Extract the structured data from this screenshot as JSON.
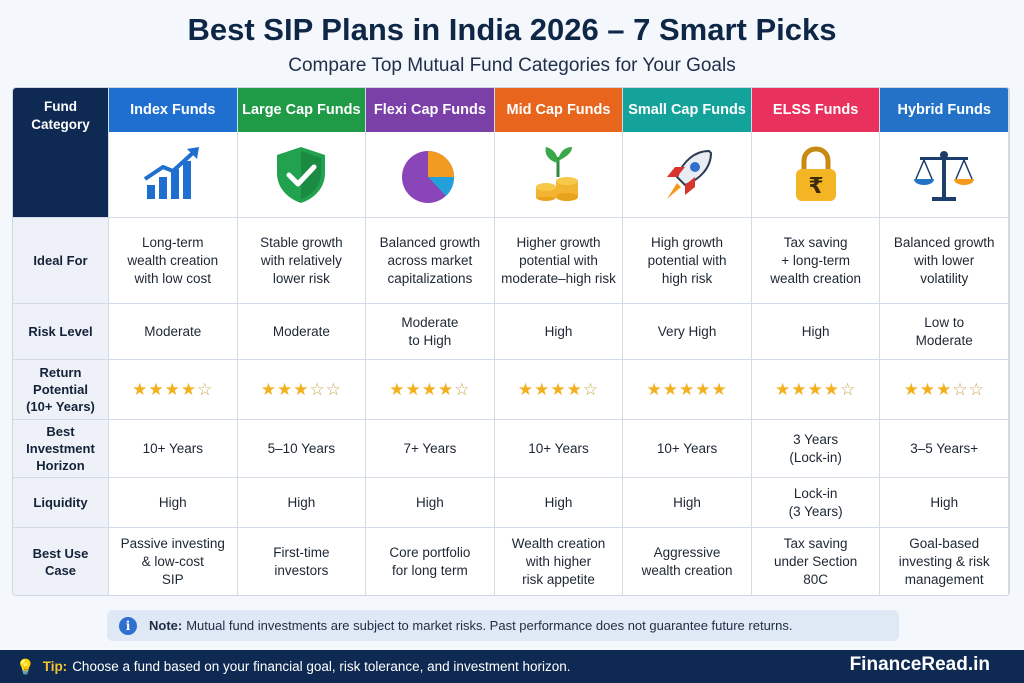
{
  "title": "Best SIP Plans in India 2026 – 7 Smart Picks",
  "subtitle": "Compare Top Mutual Fund Categories for Your Goals",
  "corner_label": "Fund\nCategory",
  "columns": [
    {
      "name": "Index Funds",
      "color": "#1e6fd0",
      "icon": "growth-chart-icon"
    },
    {
      "name": "Large Cap Funds",
      "color": "#1f9a47",
      "icon": "shield-check-icon"
    },
    {
      "name": "Flexi Cap Funds",
      "color": "#7b3fa8",
      "icon": "pie-chart-icon"
    },
    {
      "name": "Mid Cap Funds",
      "color": "#e8651d",
      "icon": "coins-plant-icon"
    },
    {
      "name": "Small Cap Funds",
      "color": "#14a39a",
      "icon": "rocket-icon"
    },
    {
      "name": "ELSS Funds",
      "color": "#e8325d",
      "icon": "rupee-lock-icon"
    },
    {
      "name": "Hybrid Funds",
      "color": "#2472c8",
      "icon": "balance-scale-icon"
    }
  ],
  "rows": {
    "ideal_for": {
      "label": "Ideal For",
      "values": [
        "Long-term\nwealth creation\nwith low cost",
        "Stable growth\nwith relatively\nlower risk",
        "Balanced growth\nacross market\ncapitalizations",
        "Higher growth\npotential with\nmoderate–high risk",
        "High growth\npotential with\nhigh risk",
        "Tax saving\n+ long-term\nwealth creation",
        "Balanced growth\nwith lower\nvolatility"
      ]
    },
    "risk_level": {
      "label": "Risk Level",
      "values": [
        "Moderate",
        "Moderate",
        "Moderate\nto High",
        "High",
        "Very High",
        "High",
        "Low to\nModerate"
      ]
    },
    "return_potential": {
      "label": "Return\nPotential\n(10+ Years)",
      "stars_out_of": 5,
      "ratings": [
        4,
        3,
        4,
        4,
        5,
        4,
        3
      ]
    },
    "horizon": {
      "label": "Best\nInvestment\nHorizon",
      "values": [
        "10+ Years",
        "5–10 Years",
        "7+ Years",
        "10+ Years",
        "10+ Years",
        "3 Years\n(Lock-in)",
        "3–5 Years+"
      ]
    },
    "liquidity": {
      "label": "Liquidity",
      "values": [
        "High",
        "High",
        "High",
        "High",
        "High",
        "Lock-in\n(3 Years)",
        "High"
      ]
    },
    "use_case": {
      "label": "Best Use Case",
      "values": [
        "Passive investing\n& low-cost\nSIP",
        "First-time\ninvestors",
        "Core portfolio\nfor long term",
        "Wealth creation\nwith higher\nrisk appetite",
        "Aggressive\nwealth creation",
        "Tax saving\nunder Section\n80C",
        "Goal-based\ninvesting & risk\nmanagement"
      ]
    }
  },
  "note": {
    "label": "Note:",
    "text": "Mutual fund investments are subject to market risks. Past performance does not guarantee future returns.",
    "icon": "info-icon"
  },
  "footer": {
    "tip_label": "Tip:",
    "tip_text": "Choose a fund based on your financial goal, risk tolerance, and investment horizon.",
    "icon": "lightbulb-icon",
    "brand": "FinanceRead.in"
  }
}
